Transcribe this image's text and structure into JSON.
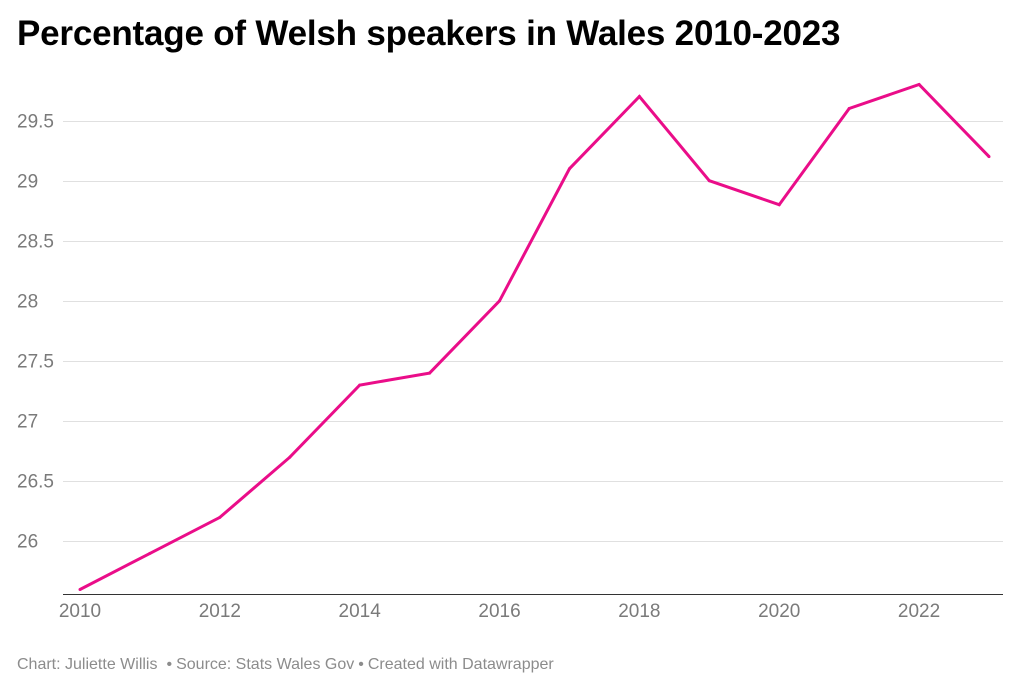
{
  "header": {
    "title": "Percentage of Welsh speakers in Wales 2010-2023"
  },
  "chart_data": {
    "type": "line",
    "title": "Percentage of Welsh speakers in Wales 2010-2023",
    "xlabel": "",
    "ylabel": "",
    "x": [
      2010,
      2011,
      2012,
      2013,
      2014,
      2015,
      2016,
      2017,
      2018,
      2019,
      2020,
      2021,
      2022,
      2023
    ],
    "series": [
      {
        "values": [
          25.6,
          25.9,
          26.2,
          26.7,
          27.3,
          27.4,
          28.0,
          29.1,
          29.7,
          29.0,
          28.8,
          29.6,
          29.8,
          29.2
        ]
      }
    ],
    "x_ticks": [
      "2010",
      "2012",
      "2014",
      "2016",
      "2018",
      "2020",
      "2022"
    ],
    "y_ticks": [
      "26",
      "26.5",
      "27",
      "27.5",
      "28",
      "28.5",
      "29",
      "29.5"
    ],
    "xlim": [
      2010,
      2023
    ],
    "ylim": [
      25.6,
      29.8
    ],
    "grid": "horizontal",
    "colors": {
      "line": "#ea0d89",
      "grid": "#e0e0e0",
      "tick_label": "#7a7a7a",
      "baseline": "#333333"
    }
  },
  "footer": {
    "chart_credit": "Chart: Juliette Willis",
    "source": "Source: Stats Wales Gov",
    "created_with": "Created with Datawrapper"
  }
}
